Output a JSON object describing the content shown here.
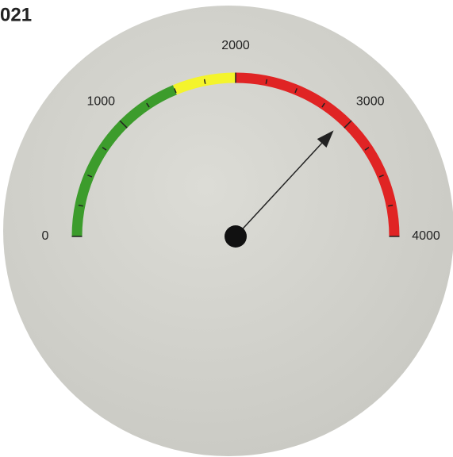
{
  "chart_data": {
    "type": "gauge",
    "title": "021",
    "value": 2950,
    "ylim": [
      0,
      4000
    ],
    "yticks": [
      0,
      1000,
      2000,
      3000,
      4000
    ],
    "minor_ticks": [
      250,
      500,
      750,
      1250,
      1500,
      1750,
      2250,
      2500,
      2750,
      3250,
      3500,
      3750
    ],
    "bands": [
      {
        "from": 0,
        "to": 1500,
        "color": "#3c9c2c"
      },
      {
        "from": 1500,
        "to": 2000,
        "color": "#f4f42c"
      },
      {
        "from": 2000,
        "to": 4000,
        "color": "#e02424"
      }
    ],
    "needle_color": "#222222"
  }
}
